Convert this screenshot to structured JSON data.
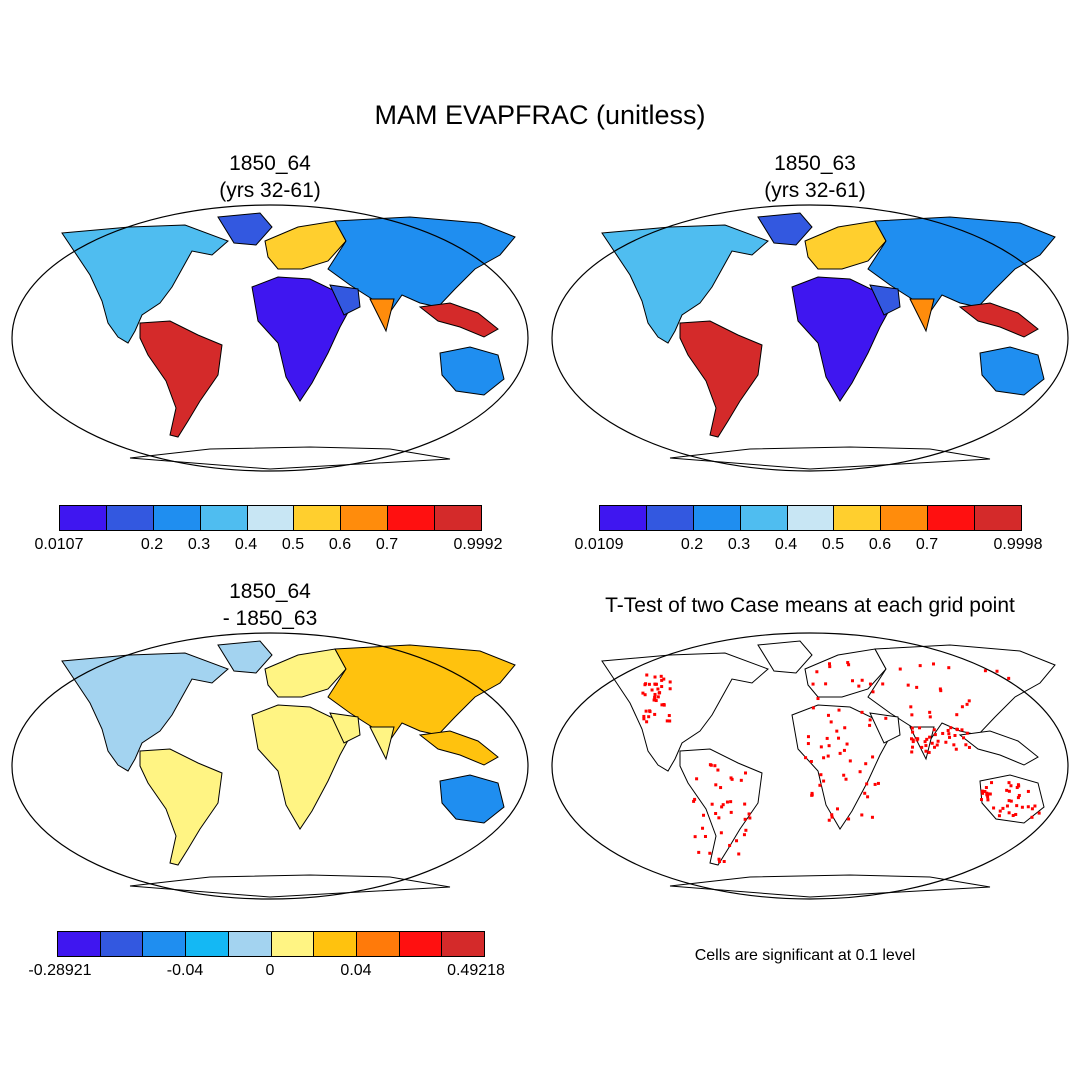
{
  "title": "MAM EVAPFRAC (unitless)",
  "panels": [
    {
      "title_line1": "1850_64",
      "title_line2": "(yrs 32-61)"
    },
    {
      "title_line1": "1850_63",
      "title_line2": "(yrs 32-61)"
    },
    {
      "title_line1": "1850_64",
      "title_line2": "- 1850_63"
    },
    {
      "title_line1": "T-Test of two Case means at each grid point",
      "title_line2": ""
    }
  ],
  "colorbars": [
    {
      "colors": [
        "#3f16f0",
        "#3358e0",
        "#1f8ef0",
        "#4fbdf0",
        "#c8e6f4",
        "#ffcf2e",
        "#ff8c0c",
        "#ff1010",
        "#d42a2a"
      ],
      "labels": [
        "0.0107",
        "0.2",
        "0.3",
        "0.4",
        "0.5",
        "0.6",
        "0.7",
        "0.9992"
      ]
    },
    {
      "colors": [
        "#3f16f0",
        "#3358e0",
        "#1f8ef0",
        "#4fbdf0",
        "#c8e6f4",
        "#ffcf2e",
        "#ff8c0c",
        "#ff1010",
        "#d42a2a"
      ],
      "labels": [
        "0.0109",
        "0.2",
        "0.3",
        "0.4",
        "0.5",
        "0.6",
        "0.7",
        "0.9998"
      ]
    },
    {
      "colors": [
        "#3f16f0",
        "#3358e0",
        "#1f8ef0",
        "#14b8f4",
        "#a3d3f0",
        "#fff483",
        "#ffc20e",
        "#ff7a0a",
        "#ff1010",
        "#d42a2a"
      ],
      "labels": [
        "-0.28921",
        "-0.04",
        "0",
        "0.04",
        "0.49218"
      ]
    }
  ],
  "note": "Cells are significant at 0.1 level"
}
